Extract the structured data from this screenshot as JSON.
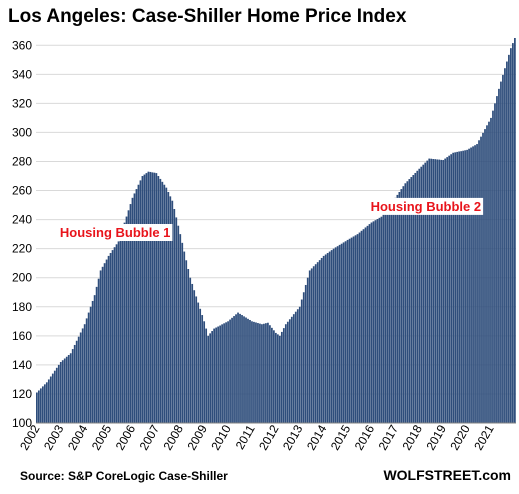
{
  "chart_data": {
    "type": "bar",
    "title": "Los Angeles: Case-Shiller Home Price Index",
    "source": "Source: S&P CoreLogic Case-Shiller",
    "brand": "WOLFSTREET.com",
    "ylim": [
      100,
      365
    ],
    "yticks": [
      100,
      120,
      140,
      160,
      180,
      200,
      220,
      240,
      260,
      280,
      300,
      320,
      340,
      360
    ],
    "xtick_labels": [
      "2002",
      "2003",
      "2004",
      "2005",
      "2006",
      "2007",
      "2008",
      "2009",
      "2010",
      "2011",
      "2012",
      "2013",
      "2014",
      "2015",
      "2016",
      "2017",
      "2018",
      "2019",
      "2020",
      "2021"
    ],
    "grid": "horizontal",
    "bar_color": "#2e4d7b",
    "annotation_color": "#e8141b",
    "annotations": [
      {
        "text": "Housing Bubble 1",
        "x": "2003-01",
        "y": 228
      },
      {
        "text": "Housing Bubble 2",
        "x": "2016-01",
        "y": 246
      }
    ],
    "series": [
      {
        "start": "2002-01",
        "frequency": "monthly",
        "anchors": [
          [
            "2002-01",
            121
          ],
          [
            "2002-06",
            128
          ],
          [
            "2003-01",
            142
          ],
          [
            "2003-06",
            148
          ],
          [
            "2004-01",
            168
          ],
          [
            "2004-06",
            188
          ],
          [
            "2004-09",
            205
          ],
          [
            "2005-01",
            215
          ],
          [
            "2005-06",
            225
          ],
          [
            "2006-01",
            255
          ],
          [
            "2006-06",
            270
          ],
          [
            "2006-09",
            273
          ],
          [
            "2007-01",
            272
          ],
          [
            "2007-06",
            262
          ],
          [
            "2007-09",
            253
          ],
          [
            "2008-01",
            230
          ],
          [
            "2008-06",
            200
          ],
          [
            "2009-01",
            170
          ],
          [
            "2009-03",
            160
          ],
          [
            "2009-06",
            165
          ],
          [
            "2010-01",
            170
          ],
          [
            "2010-06",
            176
          ],
          [
            "2011-01",
            170
          ],
          [
            "2011-06",
            168
          ],
          [
            "2011-09",
            169
          ],
          [
            "2012-01",
            162
          ],
          [
            "2012-03",
            160
          ],
          [
            "2012-06",
            168
          ],
          [
            "2013-01",
            180
          ],
          [
            "2013-06",
            205
          ],
          [
            "2014-01",
            215
          ],
          [
            "2014-06",
            220
          ],
          [
            "2015-01",
            226
          ],
          [
            "2015-06",
            230
          ],
          [
            "2016-01",
            238
          ],
          [
            "2016-06",
            242
          ],
          [
            "2017-01",
            255
          ],
          [
            "2017-06",
            265
          ],
          [
            "2018-01",
            275
          ],
          [
            "2018-06",
            282
          ],
          [
            "2019-01",
            281
          ],
          [
            "2019-06",
            286
          ],
          [
            "2020-01",
            288
          ],
          [
            "2020-06",
            292
          ],
          [
            "2021-01",
            310
          ],
          [
            "2021-06",
            335
          ],
          [
            "2021-11",
            358
          ],
          [
            "2022-01",
            365
          ]
        ]
      }
    ]
  }
}
